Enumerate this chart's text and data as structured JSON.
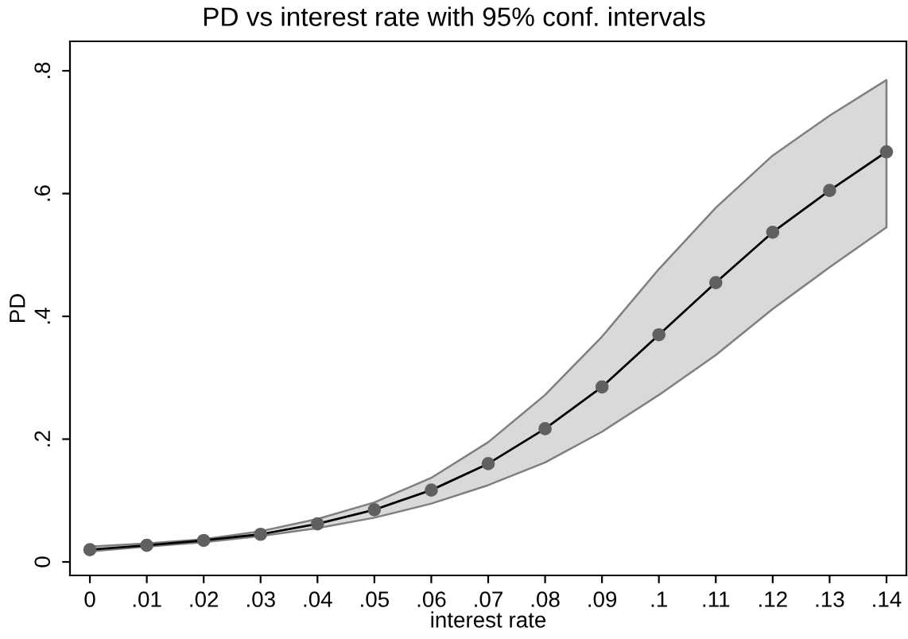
{
  "chart_data": {
    "type": "line",
    "title": "PD vs interest rate with 95% conf. intervals",
    "xlabel": "interest rate",
    "ylabel": "PD",
    "x": [
      0,
      0.01,
      0.02,
      0.03,
      0.04,
      0.05,
      0.06,
      0.07,
      0.08,
      0.09,
      0.1,
      0.11,
      0.12,
      0.13,
      0.14
    ],
    "series": [
      {
        "color": "#000000",
        "values": [
          0.02,
          0.027,
          0.035,
          0.045,
          0.062,
          0.085,
          0.117,
          0.16,
          0.217,
          0.285,
          0.37,
          0.455,
          0.537,
          0.605,
          0.668
        ],
        "lower": [
          0.017,
          0.025,
          0.032,
          0.042,
          0.055,
          0.072,
          0.095,
          0.125,
          0.162,
          0.212,
          0.272,
          0.337,
          0.412,
          0.48,
          0.545
        ],
        "upper": [
          0.025,
          0.03,
          0.037,
          0.05,
          0.07,
          0.097,
          0.137,
          0.195,
          0.272,
          0.367,
          0.477,
          0.577,
          0.662,
          0.727,
          0.785
        ]
      }
    ],
    "marker": "circle",
    "line_style": "solid",
    "grid": false,
    "legend": false,
    "xlim": [
      -0.0035,
      0.1435
    ],
    "ylim": [
      -0.022,
      0.848
    ],
    "xticks": [
      0,
      {
        "value": 0.01,
        "label": ".01"
      },
      {
        "value": 0.02,
        "label": ".02"
      },
      {
        "value": 0.03,
        "label": ".03"
      },
      {
        "value": 0.04,
        "label": ".04"
      },
      {
        "value": 0.05,
        "label": ".05"
      },
      {
        "value": 0.06,
        "label": ".06"
      },
      {
        "value": 0.07,
        "label": ".07"
      },
      {
        "value": 0.08,
        "label": ".08"
      },
      {
        "value": 0.09,
        "label": ".09"
      },
      {
        "value": 0.1,
        "label": ".1"
      },
      {
        "value": 0.11,
        "label": ".11"
      },
      {
        "value": 0.12,
        "label": ".12"
      },
      {
        "value": 0.13,
        "label": ".13"
      },
      {
        "value": 0.14,
        "label": ".14"
      }
    ],
    "yticks": [
      0,
      {
        "value": 0.2,
        "label": ".2"
      },
      {
        "value": 0.4,
        "label": ".4"
      },
      {
        "value": 0.6,
        "label": ".6"
      },
      {
        "value": 0.8,
        "label": ".8"
      }
    ]
  }
}
